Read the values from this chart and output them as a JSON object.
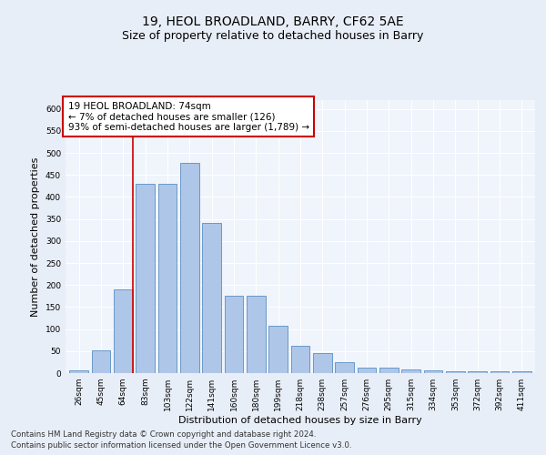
{
  "title": "19, HEOL BROADLAND, BARRY, CF62 5AE",
  "subtitle": "Size of property relative to detached houses in Barry",
  "xlabel": "Distribution of detached houses by size in Barry",
  "ylabel": "Number of detached properties",
  "categories": [
    "26sqm",
    "45sqm",
    "64sqm",
    "83sqm",
    "103sqm",
    "122sqm",
    "141sqm",
    "160sqm",
    "180sqm",
    "199sqm",
    "218sqm",
    "238sqm",
    "257sqm",
    "276sqm",
    "295sqm",
    "315sqm",
    "334sqm",
    "353sqm",
    "372sqm",
    "392sqm",
    "411sqm"
  ],
  "values": [
    7,
    51,
    190,
    430,
    430,
    477,
    340,
    175,
    175,
    107,
    62,
    45,
    25,
    12,
    12,
    9,
    7,
    5,
    5,
    5,
    5
  ],
  "bar_color": "#aec6e8",
  "bar_edge_color": "#5a8fc2",
  "vline_color": "#cc0000",
  "vline_pos": 2.43,
  "annotation_text": "19 HEOL BROADLAND: 74sqm\n← 7% of detached houses are smaller (126)\n93% of semi-detached houses are larger (1,789) →",
  "annotation_box_color": "#ffffff",
  "annotation_box_edge_color": "#cc0000",
  "ylim": [
    0,
    620
  ],
  "yticks": [
    0,
    50,
    100,
    150,
    200,
    250,
    300,
    350,
    400,
    450,
    500,
    550,
    600
  ],
  "bg_color": "#e8eef7",
  "plot_bg_color": "#f0f4fb",
  "footer_line1": "Contains HM Land Registry data © Crown copyright and database right 2024.",
  "footer_line2": "Contains public sector information licensed under the Open Government Licence v3.0.",
  "title_fontsize": 10,
  "subtitle_fontsize": 9,
  "ylabel_fontsize": 8,
  "xlabel_fontsize": 8,
  "tick_fontsize": 6.5,
  "annotation_fontsize": 7.5,
  "footer_fontsize": 6.2
}
